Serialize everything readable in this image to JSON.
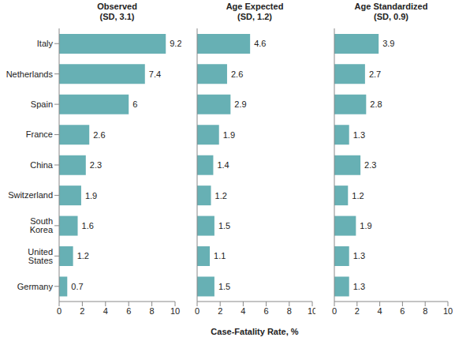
{
  "chart_data": [
    {
      "type": "bar",
      "orientation": "horizontal",
      "title": "Observed",
      "subtitle": "(SD, 3.1)",
      "categories": [
        "Italy",
        "Netherlands",
        "Spain",
        "France",
        "China",
        "Switzerland",
        "South Korea",
        "United States",
        "Germany"
      ],
      "values": [
        9.2,
        7.4,
        6.0,
        2.6,
        2.3,
        1.9,
        1.6,
        1.2,
        0.7
      ],
      "color": "#67b0b4",
      "xlim": [
        0,
        10
      ],
      "xticks": [
        0,
        2,
        4,
        6,
        8,
        10
      ],
      "data_labels": true,
      "grid": false
    },
    {
      "type": "bar",
      "orientation": "horizontal",
      "title": "Age Expected",
      "subtitle": "(SD, 1.2)",
      "xlabel": "Case-Fatality Rate, %",
      "categories": [
        "Italy",
        "Netherlands",
        "Spain",
        "France",
        "China",
        "Switzerland",
        "South Korea",
        "United States",
        "Germany"
      ],
      "values": [
        4.6,
        2.6,
        2.9,
        1.9,
        1.4,
        1.2,
        1.5,
        1.1,
        1.5
      ],
      "color": "#67b0b4",
      "xlim": [
        0,
        10
      ],
      "xticks": [
        0,
        2,
        4,
        6,
        8,
        10
      ],
      "data_labels": true,
      "grid": false,
      "tick_labels": "x"
    },
    {
      "type": "bar",
      "orientation": "horizontal",
      "title": "Age Standardized",
      "subtitle": "(SD, 0.9)",
      "categories": [
        "Italy",
        "Netherlands",
        "Spain",
        "France",
        "China",
        "Switzerland",
        "South Korea",
        "United States",
        "Germany"
      ],
      "values": [
        3.9,
        2.7,
        2.8,
        1.3,
        2.3,
        1.2,
        1.9,
        1.3,
        1.3
      ],
      "color": "#67b0b4",
      "xlim": [
        0,
        10
      ],
      "xticks": [
        0,
        2,
        4,
        6,
        8,
        10
      ],
      "data_labels": true,
      "grid": false,
      "tick_labels": "x"
    }
  ]
}
